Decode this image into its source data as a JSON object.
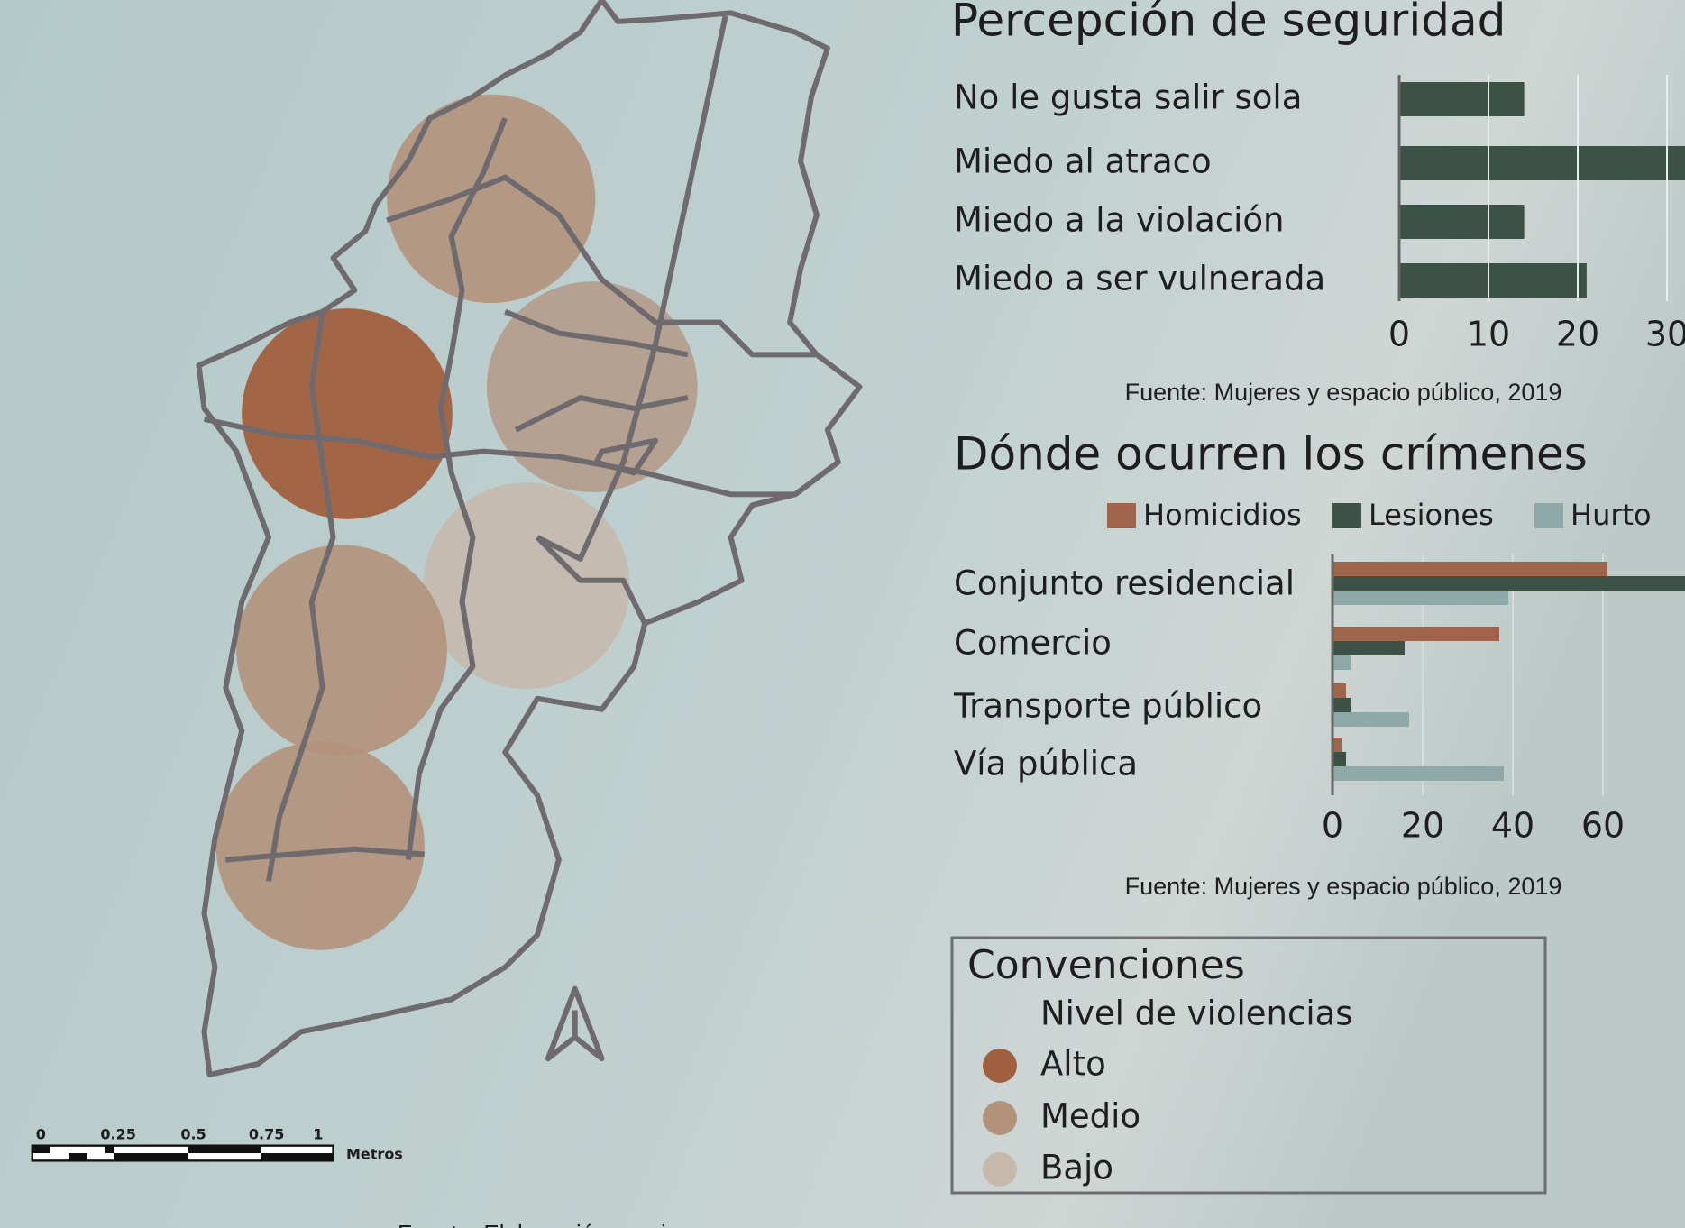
{
  "map": {
    "scale_bar": {
      "labels": [
        "0",
        "0.25",
        "0.5",
        "0.75",
        "1"
      ],
      "unit": "Metros"
    },
    "source": "Fuente: Elaboración propia"
  },
  "chart_data": [
    {
      "type": "bar",
      "title": "Percepción de seguridad",
      "categories": [
        "No le gusta salir sola",
        "Miedo al atraco",
        "Miedo a la violación",
        "Miedo a ser vulnerada"
      ],
      "values": [
        14,
        35,
        14,
        21
      ],
      "color": "#3d5247",
      "xlim": [
        0,
        32
      ],
      "xticks": [
        0,
        10,
        20,
        30
      ],
      "grid": true,
      "source": "Fuente: Mujeres y espacio público, 2019"
    },
    {
      "type": "grouped_bar",
      "title": "Dónde ocurren los crímenes",
      "categories": [
        "Conjunto residencial",
        "Comercio",
        "Transporte público",
        "Vía pública"
      ],
      "series": [
        {
          "name": "Homicidios",
          "color": "#a0644a",
          "values": [
            61,
            37,
            3,
            2
          ]
        },
        {
          "name": "Lesiones",
          "color": "#3d5247",
          "values": [
            85,
            16,
            4,
            3
          ]
        },
        {
          "name": "Hurto",
          "color": "#8fa9a8",
          "values": [
            39,
            4,
            17,
            38
          ]
        }
      ],
      "xlim": [
        0,
        78
      ],
      "xticks": [
        0,
        20,
        40,
        60
      ],
      "grid": true,
      "source": "Fuente: Mujeres y espacio público, 2019"
    }
  ],
  "legend": {
    "title": "Convenciones",
    "subtitle": "Nivel de violencias",
    "items": [
      {
        "label": "Alto",
        "color": "#a0603f"
      },
      {
        "label": "Medio",
        "color": "#b3927c"
      },
      {
        "label": "Bajo",
        "color": "#c5b9ab"
      }
    ]
  }
}
